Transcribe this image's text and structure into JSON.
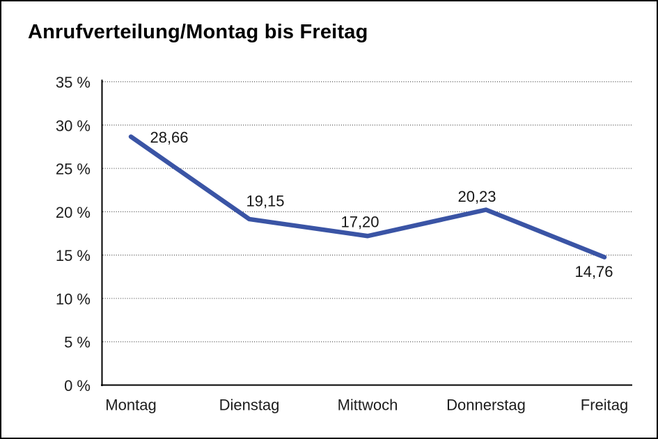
{
  "chart_data": {
    "type": "line",
    "title": "Anrufverteilung/Montag bis Freitag",
    "categories": [
      "Montag",
      "Dienstag",
      "Mittwoch",
      "Donnerstag",
      "Freitag"
    ],
    "values": [
      28.66,
      19.15,
      17.2,
      20.23,
      14.76
    ],
    "point_labels": [
      "28,66",
      "19,15",
      "17,20",
      "20,23",
      "14,76"
    ],
    "y_ticks": [
      0,
      5,
      10,
      15,
      20,
      25,
      30,
      35
    ],
    "y_tick_labels": [
      "0 %",
      "5 %",
      "10 %",
      "15 %",
      "20 %",
      "25 %",
      "30 %",
      "35 %"
    ],
    "ylim": [
      0,
      35
    ],
    "xlabel": "",
    "ylabel": "",
    "line_color": "#3A54A5",
    "grid": "horizontal-dotted",
    "legend_position": "none"
  }
}
